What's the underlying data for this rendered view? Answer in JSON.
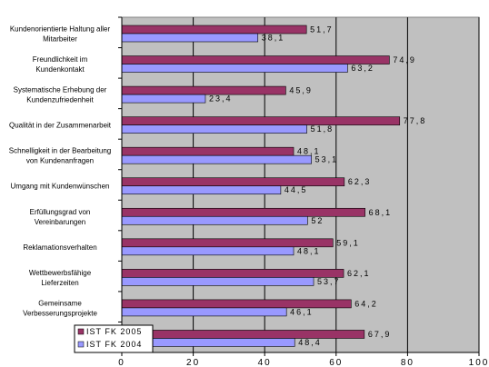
{
  "chart_data": {
    "type": "bar",
    "orientation": "horizontal",
    "categories": [
      [
        "Kundenorientierte Haltung aller",
        "Mitarbeiter"
      ],
      [
        "Freundlichkeit im",
        "Kundenkontakt"
      ],
      [
        "Systematische Erhebung der",
        "Kundenzufriedenheit"
      ],
      [
        "Qualität in der Zusammenarbeit"
      ],
      [
        "Schnelligkeit in der Bearbeitung",
        "von Kundenanfragen"
      ],
      [
        "Umgang mit Kundenwünschen"
      ],
      [
        "Erfüllungsgrad von",
        "Vereinbarungen"
      ],
      [
        "Reklamationsverhalten"
      ],
      [
        "Wettbewerbsfähige",
        "Lieferzeiten"
      ],
      [
        "Gemeinsame",
        "Verbesserungsprojekte"
      ],
      [
        ""
      ]
    ],
    "series": [
      {
        "name": "IST FK 2005",
        "color": "#993366",
        "values": [
          51.7,
          74.9,
          45.9,
          77.8,
          48.1,
          62.3,
          68.1,
          59.1,
          62.1,
          64.2,
          67.9
        ],
        "labels": [
          "51,7",
          "74,9",
          "45,9",
          "77,8",
          "48,1",
          "62,3",
          "68,1",
          "59,1",
          "62,1",
          "64,2",
          "67,9"
        ]
      },
      {
        "name": "IST FK 2004",
        "color": "#9999FF",
        "values": [
          38.1,
          63.2,
          23.4,
          51.8,
          53.1,
          44.5,
          52,
          48.1,
          53.7,
          46.1,
          48.4
        ],
        "labels": [
          "38,1",
          "63,2",
          "23,4",
          "51,8",
          "53,1",
          "44,5",
          "52",
          "48,1",
          "53,7",
          "46,1",
          "48,4"
        ]
      }
    ],
    "xlim": [
      0,
      100
    ],
    "xticks": [
      "0",
      "20",
      "40",
      "60",
      "80",
      "100"
    ],
    "grid": true,
    "plot_background": "#C0C0C0",
    "legend_position": "bottom-left"
  }
}
